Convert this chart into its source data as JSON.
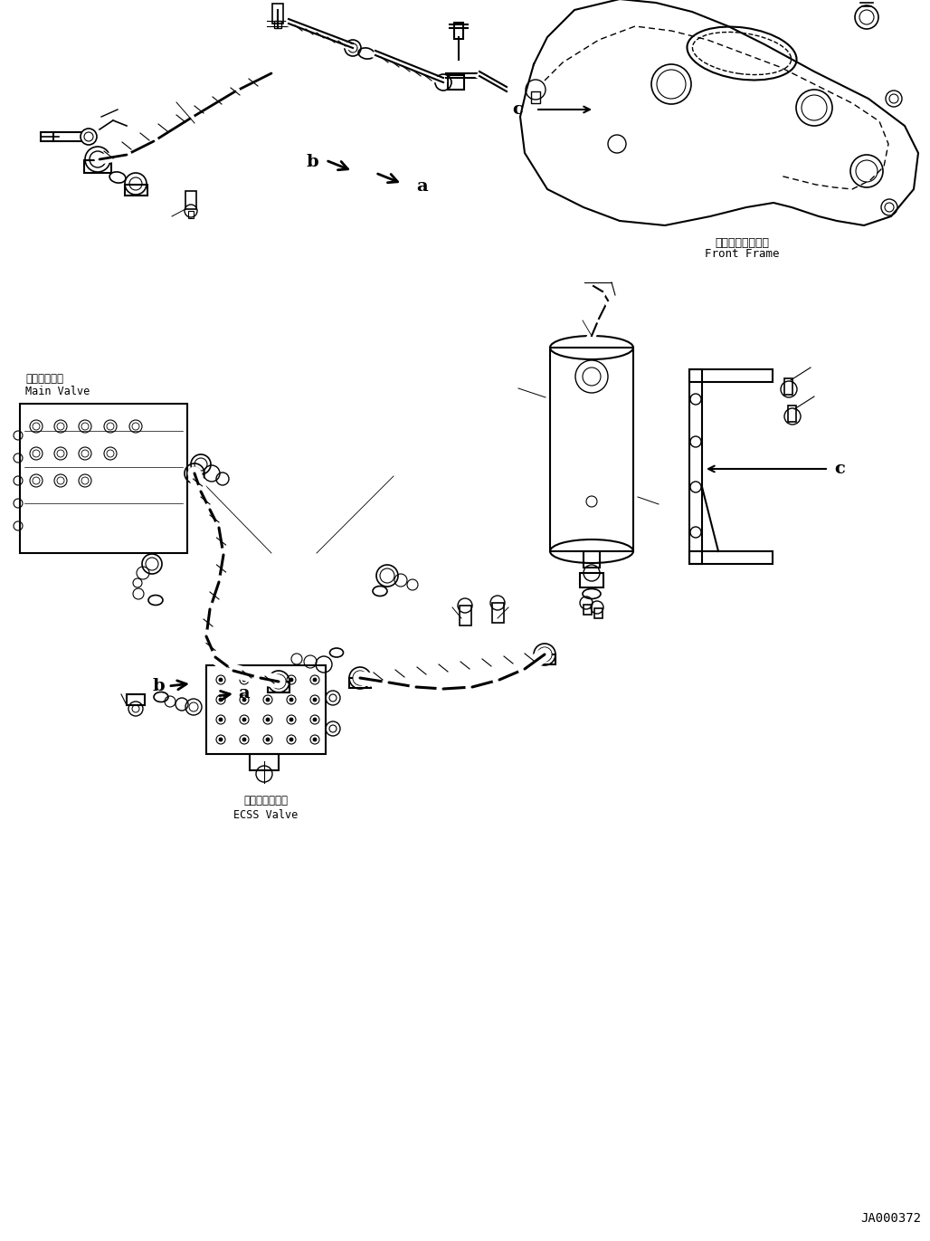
{
  "background_color": "#ffffff",
  "line_color": "#000000",
  "line_width": 0.8,
  "fig_width": 10.28,
  "fig_height": 13.71,
  "labels": {
    "front_frame_jp": "フロントフレーム",
    "front_frame_en": "Front Frame",
    "main_valve_jp": "メインバルブ",
    "main_valve_en": "Main Valve",
    "ecss_valve_jp": "ＥＣＳＳバルブ",
    "ecss_valve_en": "ECSS Valve",
    "drawing_number": "JA000372",
    "label_a": "a",
    "label_b": "b",
    "label_c": "c"
  },
  "font_sizes": {
    "label_abc": 14,
    "component_label": 9,
    "drawing_number": 10
  }
}
